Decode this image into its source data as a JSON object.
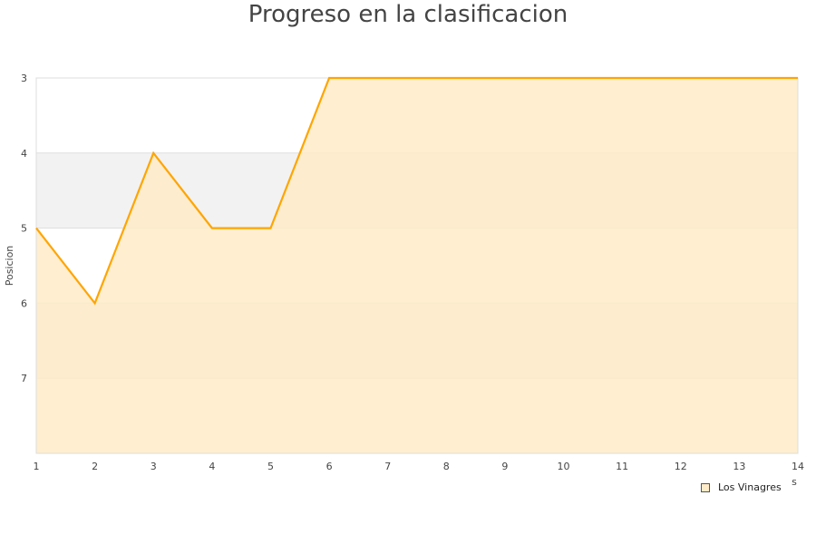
{
  "chart_data": {
    "type": "area",
    "title": "Progreso en la clasificacion",
    "ylabel": "Posicion",
    "xlabel": "s",
    "x": [
      1,
      2,
      3,
      4,
      5,
      6,
      7,
      8,
      9,
      10,
      11,
      12,
      13,
      14
    ],
    "series": [
      {
        "name": "Los Vinagres",
        "values": [
          5,
          6,
          4,
          5,
          5,
          3,
          3,
          3,
          3,
          3,
          3,
          3,
          3,
          3
        ]
      }
    ],
    "ylim": [
      8,
      3
    ],
    "y_inverted": true,
    "yticks": [
      3,
      4,
      5,
      6,
      7
    ],
    "xlim": [
      1,
      14
    ],
    "grid": true,
    "legend": "bottom-right",
    "colors": {
      "line": "#ffa500",
      "fill": "#ffebc8",
      "band": "#f2f2f2"
    }
  }
}
